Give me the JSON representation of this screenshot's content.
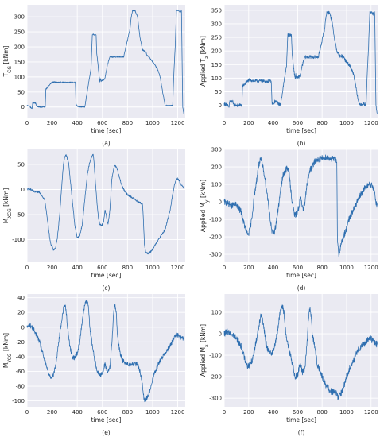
{
  "colors": {
    "background": "#eaeaf2",
    "grid": "#ffffff",
    "line": "#2f6fb0",
    "text": "#222222"
  },
  "chart_data": [
    {
      "type": "line",
      "caption": "(a)",
      "xlabel": "time [sec]",
      "ylabel": "T_{CG} [kNm]",
      "xlim": [
        0,
        1260
      ],
      "ylim": [
        -35,
        340
      ],
      "xticks": [
        0,
        200,
        400,
        600,
        800,
        1000,
        1200
      ],
      "yticks": [
        0,
        50,
        100,
        150,
        200,
        250,
        300
      ],
      "noise": 2,
      "series": [
        {
          "x": [
            0,
            20,
            25,
            40,
            45,
            70,
            75,
            100,
            110,
            145,
            150,
            200,
            260,
            380,
            385,
            390,
            395,
            400,
            405,
            410,
            420,
            460,
            510,
            520,
            525,
            540,
            545,
            550,
            555,
            575,
            580,
            585,
            590,
            595,
            600,
            610,
            620,
            640,
            660,
            680,
            700,
            750,
            770,
            820,
            830,
            840,
            850,
            860,
            880,
            900,
            920,
            950,
            955,
            960,
            975,
            1000,
            1020,
            1040,
            1060,
            1080,
            1100,
            1120,
            1140,
            1150,
            1160,
            1170,
            1180,
            1190,
            1200,
            1210,
            1220,
            1230,
            1240,
            1250
          ],
          "y": [
            5,
            4,
            0,
            -5,
            14,
            13,
            2,
            1,
            0,
            1,
            60,
            83,
            82,
            82,
            80,
            10,
            5,
            3,
            2,
            1,
            1,
            1,
            130,
            242,
            242,
            240,
            242,
            240,
            180,
            100,
            85,
            95,
            85,
            90,
            88,
            90,
            95,
            140,
            167,
            166,
            167,
            167,
            167,
            260,
            300,
            320,
            320,
            321,
            300,
            230,
            190,
            181,
            170,
            172,
            165,
            150,
            140,
            125,
            100,
            50,
            5,
            5,
            5,
            5,
            5,
            120,
            200,
            322,
            322,
            320,
            315,
            320,
            0,
            -25
          ]
        }
      ]
    },
    {
      "type": "line",
      "caption": "(b)",
      "xlabel": "time [sec]",
      "ylabel": "Applied T_z [kNm]",
      "xlim": [
        0,
        1260
      ],
      "ylim": [
        -45,
        370
      ],
      "xticks": [
        0,
        200,
        400,
        600,
        800,
        1000,
        1200
      ],
      "yticks": [
        0,
        50,
        100,
        150,
        200,
        250,
        300,
        350
      ],
      "noise": 6,
      "series": [
        {
          "x": [
            0,
            20,
            25,
            40,
            45,
            70,
            75,
            100,
            110,
            145,
            150,
            200,
            260,
            380,
            385,
            390,
            395,
            400,
            405,
            410,
            420,
            460,
            510,
            520,
            525,
            540,
            545,
            550,
            555,
            575,
            580,
            585,
            590,
            595,
            600,
            610,
            620,
            640,
            660,
            680,
            700,
            750,
            770,
            820,
            830,
            840,
            850,
            860,
            880,
            900,
            920,
            950,
            955,
            960,
            975,
            1000,
            1020,
            1040,
            1060,
            1080,
            1100,
            1120,
            1140,
            1150,
            1160,
            1170,
            1180,
            1190,
            1200,
            1210,
            1220,
            1230,
            1240,
            1250
          ],
          "y": [
            5,
            4,
            0,
            -5,
            15,
            14,
            2,
            1,
            0,
            1,
            70,
            93,
            90,
            88,
            86,
            12,
            5,
            3,
            2,
            14,
            14,
            1,
            150,
            262,
            260,
            258,
            260,
            255,
            190,
            110,
            100,
            112,
            100,
            105,
            100,
            105,
            110,
            150,
            178,
            177,
            178,
            178,
            178,
            280,
            320,
            345,
            340,
            342,
            310,
            250,
            200,
            178,
            180,
            182,
            175,
            160,
            150,
            135,
            110,
            60,
            5,
            5,
            5,
            5,
            5,
            130,
            220,
            342,
            342,
            340,
            335,
            340,
            0,
            -30
          ]
        }
      ]
    },
    {
      "type": "line",
      "caption": "(c)",
      "xlabel": "time [sec]",
      "ylabel": "M_{XCG} [kNm]",
      "xlim": [
        0,
        1260
      ],
      "ylim": [
        -145,
        80
      ],
      "xticks": [
        0,
        200,
        400,
        600,
        800,
        1000,
        1200
      ],
      "yticks": [
        -100,
        -50,
        0,
        50
      ],
      "noise": 2,
      "series": [
        {
          "x": [
            0,
            20,
            30,
            60,
            100,
            140,
            160,
            180,
            190,
            200,
            210,
            225,
            240,
            260,
            280,
            290,
            300,
            310,
            330,
            360,
            380,
            390,
            400,
            410,
            420,
            440,
            460,
            480,
            500,
            515,
            525,
            530,
            540,
            555,
            570,
            580,
            595,
            610,
            615,
            620,
            630,
            645,
            660,
            675,
            690,
            700,
            720,
            740,
            760,
            780,
            800,
            830,
            860,
            890,
            910,
            920,
            925,
            935,
            945,
            960,
            980,
            1000,
            1020,
            1060,
            1100,
            1140,
            1160,
            1175,
            1190,
            1200,
            1210,
            1220,
            1240,
            1250
          ],
          "y": [
            0,
            2,
            0,
            -5,
            -5,
            -20,
            -55,
            -95,
            -110,
            -115,
            -120,
            -118,
            -100,
            -50,
            20,
            50,
            65,
            70,
            55,
            -20,
            -70,
            -85,
            -95,
            -95,
            -92,
            -70,
            -20,
            30,
            55,
            65,
            70,
            65,
            30,
            -20,
            -60,
            -70,
            -72,
            -65,
            -55,
            -40,
            -50,
            -70,
            -40,
            20,
            40,
            48,
            40,
            20,
            5,
            -5,
            -10,
            -15,
            -20,
            -25,
            -28,
            -30,
            -50,
            -110,
            -125,
            -128,
            -125,
            -120,
            -110,
            -95,
            -80,
            -40,
            -10,
            10,
            20,
            22,
            18,
            12,
            5,
            3
          ]
        }
      ]
    },
    {
      "type": "line",
      "caption": "(d)",
      "xlabel": "time [sec]",
      "ylabel": "Applied M_y [kNm]",
      "xlim": [
        0,
        1260
      ],
      "ylim": [
        -345,
        300
      ],
      "xticks": [
        0,
        200,
        400,
        600,
        800,
        1000,
        1200
      ],
      "yticks": [
        -300,
        -200,
        -100,
        0,
        100,
        200,
        300
      ],
      "noise": 18,
      "series": [
        {
          "x": [
            0,
            30,
            60,
            100,
            140,
            160,
            180,
            190,
            200,
            210,
            225,
            240,
            260,
            280,
            290,
            300,
            310,
            330,
            360,
            380,
            390,
            400,
            410,
            420,
            440,
            460,
            480,
            500,
            515,
            525,
            530,
            540,
            555,
            570,
            580,
            595,
            610,
            615,
            620,
            630,
            645,
            660,
            675,
            690,
            700,
            720,
            740,
            760,
            780,
            800,
            830,
            860,
            890,
            910,
            920,
            925,
            935,
            945,
            960,
            980,
            1000,
            1020,
            1060,
            1100,
            1140,
            1160,
            1175,
            1190,
            1200,
            1210,
            1220,
            1240,
            1250
          ],
          "y": [
            0,
            -10,
            -20,
            -15,
            -60,
            -120,
            -170,
            -185,
            -180,
            -160,
            -100,
            0,
            100,
            200,
            230,
            240,
            220,
            150,
            0,
            -120,
            -170,
            -180,
            -170,
            -140,
            -50,
            60,
            150,
            180,
            190,
            185,
            170,
            100,
            0,
            -60,
            -80,
            -60,
            -30,
            -10,
            20,
            0,
            -50,
            0,
            100,
            150,
            180,
            200,
            230,
            240,
            245,
            250,
            255,
            250,
            245,
            245,
            240,
            -200,
            -300,
            -280,
            -230,
            -190,
            -150,
            -100,
            -40,
            20,
            70,
            90,
            95,
            100,
            95,
            90,
            80,
            0,
            -20
          ]
        }
      ]
    },
    {
      "type": "line",
      "caption": "(e)",
      "xlabel": "time [sec]",
      "ylabel": "M_{YCG} [kNm]",
      "xlim": [
        0,
        1260
      ],
      "ylim": [
        -108,
        45
      ],
      "xticks": [
        0,
        200,
        400,
        600,
        800,
        1000,
        1200
      ],
      "yticks": [
        -100,
        -80,
        -60,
        -40,
        -20,
        0,
        20,
        40
      ],
      "noise": 3,
      "series": [
        {
          "x": [
            0,
            20,
            40,
            60,
            100,
            140,
            170,
            190,
            210,
            230,
            260,
            290,
            300,
            310,
            320,
            340,
            360,
            380,
            400,
            420,
            440,
            460,
            470,
            480,
            490,
            500,
            520,
            540,
            560,
            580,
            600,
            620,
            640,
            660,
            680,
            690,
            700,
            710,
            720,
            740,
            760,
            800,
            840,
            880,
            900,
            920,
            930,
            940,
            960,
            980,
            1000,
            1020,
            1060,
            1100,
            1140,
            1170,
            1190,
            1210,
            1230,
            1250
          ],
          "y": [
            0,
            3,
            0,
            -5,
            -20,
            -45,
            -62,
            -68,
            -65,
            -50,
            -10,
            25,
            30,
            25,
            5,
            -25,
            -40,
            -42,
            -35,
            -20,
            10,
            30,
            35,
            35,
            25,
            0,
            -25,
            -45,
            -60,
            -65,
            -62,
            -50,
            -60,
            -55,
            -10,
            20,
            30,
            20,
            -10,
            -35,
            -45,
            -50,
            -50,
            -50,
            -60,
            -80,
            -95,
            -100,
            -95,
            -85,
            -70,
            -60,
            -45,
            -35,
            -25,
            -15,
            -10,
            -12,
            -15,
            -15
          ]
        }
      ]
    },
    {
      "type": "line",
      "caption": "(f)",
      "xlabel": "time [sec]",
      "ylabel": "Applied M_x [kNm]",
      "xlim": [
        0,
        1260
      ],
      "ylim": [
        -340,
        185
      ],
      "xticks": [
        0,
        200,
        400,
        600,
        800,
        1000,
        1200
      ],
      "yticks": [
        -300,
        -200,
        -100,
        0,
        100
      ],
      "noise": 15,
      "series": [
        {
          "x": [
            0,
            30,
            60,
            100,
            140,
            170,
            190,
            210,
            230,
            260,
            290,
            300,
            310,
            320,
            340,
            360,
            380,
            400,
            420,
            440,
            460,
            470,
            480,
            490,
            500,
            520,
            540,
            560,
            580,
            600,
            620,
            640,
            660,
            680,
            690,
            700,
            710,
            720,
            740,
            760,
            800,
            840,
            880,
            900,
            920,
            930,
            940,
            960,
            980,
            1000,
            1020,
            1060,
            1100,
            1140,
            1170,
            1190,
            1210,
            1230,
            1250
          ],
          "y": [
            0,
            10,
            0,
            -20,
            -60,
            -120,
            -150,
            -145,
            -120,
            -40,
            60,
            90,
            80,
            40,
            -40,
            -80,
            -90,
            -80,
            -40,
            30,
            110,
            130,
            125,
            90,
            20,
            -50,
            -100,
            -150,
            -200,
            -190,
            -140,
            -180,
            -160,
            -20,
            80,
            120,
            80,
            0,
            -60,
            -140,
            -200,
            -250,
            -270,
            -275,
            -280,
            -300,
            -290,
            -270,
            -240,
            -200,
            -170,
            -120,
            -70,
            -50,
            -30,
            -20,
            -30,
            -40,
            -50
          ]
        }
      ]
    }
  ]
}
